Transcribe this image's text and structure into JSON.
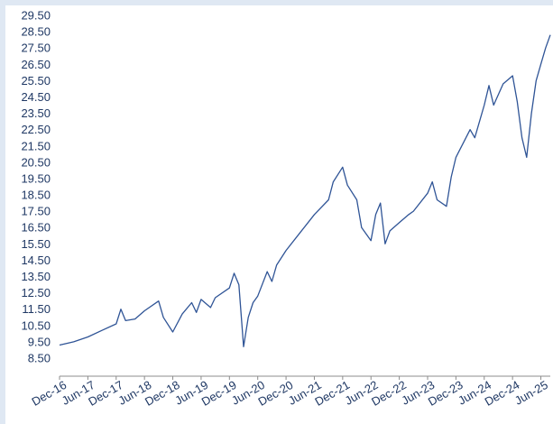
{
  "chart_data": {
    "type": "line",
    "title": "",
    "xlabel": "",
    "ylabel": "",
    "grid": false,
    "legend": "none",
    "ylim": [
      8.5,
      29.5
    ],
    "y_ticks": [
      "8.50",
      "9.50",
      "10.50",
      "11.50",
      "12.50",
      "13.50",
      "14.50",
      "15.50",
      "16.50",
      "17.50",
      "18.50",
      "19.50",
      "20.50",
      "21.50",
      "22.50",
      "23.50",
      "24.50",
      "25.50",
      "26.50",
      "27.50",
      "28.50",
      "29.50"
    ],
    "x_ticks": [
      "Dec-16",
      "Jun-17",
      "Dec-17",
      "Jun-18",
      "Dec-18",
      "Jun-19",
      "Dec-19",
      "Jun-20",
      "Dec-20",
      "Jun-21",
      "Dec-21",
      "Jun-22",
      "Dec-22",
      "Jun-23",
      "Dec-23",
      "Jun-24",
      "Dec-24",
      "Jun-25"
    ],
    "line_color": "#2f5496",
    "series": [
      {
        "x": [
          "Dec-16",
          "Mar-17",
          "Jun-17",
          "Sep-17",
          "Dec-17",
          "Jan-18",
          "Feb-18",
          "Apr-18",
          "Jun-18",
          "Sep-18",
          "Oct-18",
          "Dec-18",
          "Feb-19",
          "Apr-19",
          "May-19",
          "Jun-19",
          "Aug-19",
          "Sep-19",
          "Dec-19",
          "Jan-20",
          "Feb-20",
          "Mar-20",
          "Apr-20",
          "May-20",
          "Jun-20",
          "Aug-20",
          "Sep-20",
          "Oct-20",
          "Dec-20",
          "Mar-21",
          "Jun-21",
          "Sep-21",
          "Oct-21",
          "Dec-21",
          "Jan-22",
          "Mar-22",
          "Apr-22",
          "Jun-22",
          "Jul-22",
          "Aug-22",
          "Sep-22",
          "Oct-22",
          "Dec-22",
          "Feb-23",
          "Mar-23",
          "Jun-23",
          "Jul-23",
          "Aug-23",
          "Oct-23",
          "Nov-23",
          "Dec-23",
          "Mar-24",
          "Apr-24",
          "Jun-24",
          "Jul-24",
          "Aug-24",
          "Oct-24",
          "Dec-24",
          "Jan-25",
          "Feb-25",
          "Mar-25",
          "Apr-25",
          "May-25",
          "Jun-25",
          "Jul-25",
          "Aug-25"
        ],
        "values": [
          9.3,
          9.5,
          9.8,
          10.2,
          10.6,
          11.5,
          10.8,
          10.9,
          11.4,
          12.0,
          11.0,
          10.1,
          11.2,
          11.9,
          11.3,
          12.1,
          11.6,
          12.2,
          12.8,
          13.7,
          13.0,
          9.2,
          11.0,
          11.9,
          12.3,
          13.8,
          13.2,
          14.2,
          15.1,
          16.2,
          17.3,
          18.2,
          19.3,
          20.2,
          19.1,
          18.2,
          16.5,
          15.7,
          17.3,
          18.0,
          15.5,
          16.3,
          16.8,
          17.3,
          17.5,
          18.6,
          19.3,
          18.2,
          17.8,
          19.6,
          20.8,
          22.5,
          22.0,
          24.0,
          25.2,
          24.0,
          25.3,
          25.8,
          24.2,
          22.0,
          20.8,
          23.5,
          25.5,
          26.5,
          27.5,
          28.3
        ]
      }
    ]
  }
}
